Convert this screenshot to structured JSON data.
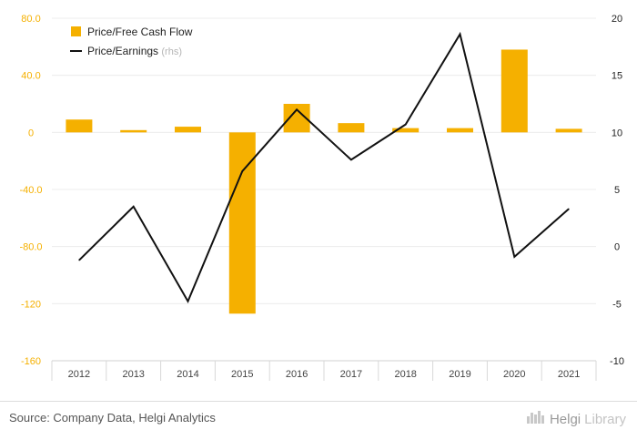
{
  "chart_data": {
    "type": "bar+line",
    "categories": [
      "2012",
      "2013",
      "2014",
      "2015",
      "2016",
      "2017",
      "2018",
      "2019",
      "2020",
      "2021"
    ],
    "series": [
      {
        "name": "Price/Free Cash Flow",
        "type": "bar",
        "axis": "left",
        "color": "#f5b000",
        "values": [
          9.0,
          1.6,
          4.0,
          -127.0,
          20.0,
          6.5,
          3.0,
          3.0,
          58.0,
          2.5
        ]
      },
      {
        "name": "Price/Earnings",
        "name_suffix": "(rhs)",
        "type": "line",
        "axis": "right",
        "color": "#111111",
        "values": [
          -1.2,
          3.5,
          -4.8,
          6.6,
          12.0,
          7.6,
          10.7,
          18.6,
          -0.9,
          3.3
        ]
      }
    ],
    "y_left": {
      "min": -160,
      "max": 80,
      "ticks": [
        80,
        40,
        0,
        -40,
        -80,
        -120,
        -160
      ],
      "tick_labels": [
        "80.0",
        "40.0",
        "0",
        "-40.0",
        "-80.0",
        "-120",
        "-160"
      ],
      "color": "#f5b000"
    },
    "y_right": {
      "min": -10,
      "max": 20,
      "ticks": [
        20,
        15,
        10,
        5,
        0,
        -5,
        -10
      ],
      "tick_labels": [
        "20",
        "15",
        "10",
        "5",
        "0",
        "-5",
        "-10"
      ]
    },
    "grid": true,
    "legend_position": "top-left"
  },
  "footer": {
    "source": "Source: Company Data, Helgi Analytics",
    "brand_part1": "Helgi",
    "brand_part2": "Library"
  }
}
